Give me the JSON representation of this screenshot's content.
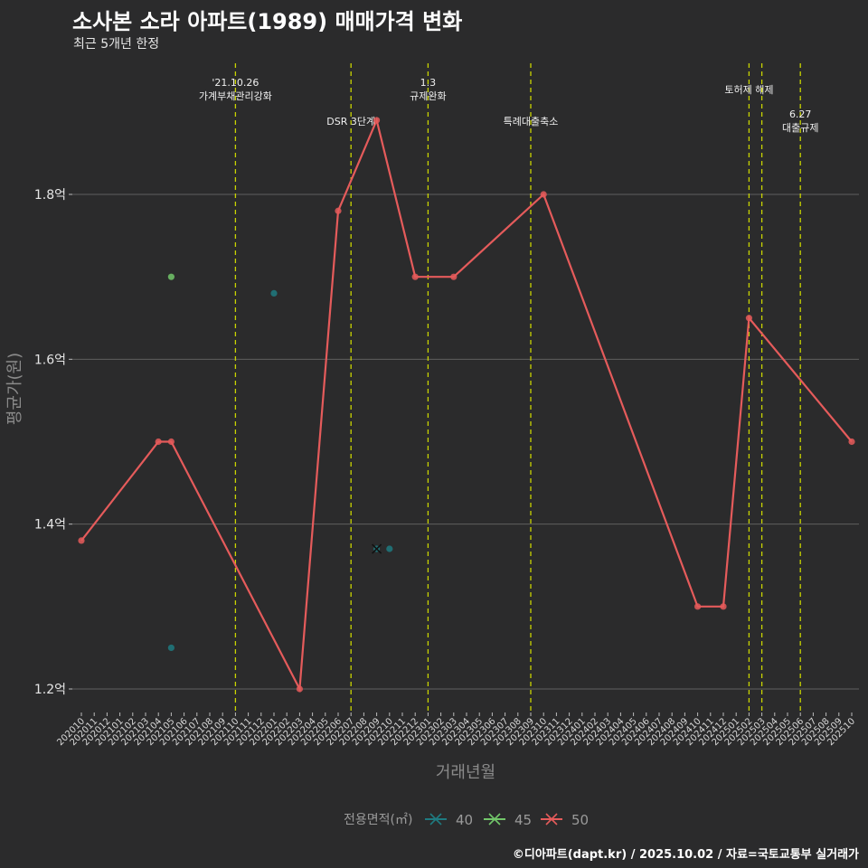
{
  "header": {
    "title": "소사본 소라 아파트(1989) 매매가격 변화",
    "subtitle": "최근 5개년 한정"
  },
  "footer": {
    "credit": "©디아파트(dapt.kr) / 2025.10.02 / 자료=국토교통부 실거래가"
  },
  "colors": {
    "background": "#2b2b2c",
    "grid": "#5f5f5f",
    "event_line": "#c9d400",
    "series_40": "#1f7a80",
    "series_45": "#72c66a",
    "series_50": "#e55b5b"
  },
  "chart_data": {
    "type": "line",
    "xlabel": "거래년월",
    "ylabel": "평균가(원)",
    "ylim": [
      1.17,
      1.96
    ],
    "y_ticks": [
      {
        "value": 1.2,
        "label": "1.2억"
      },
      {
        "value": 1.4,
        "label": "1.4억"
      },
      {
        "value": 1.6,
        "label": "1.6억"
      },
      {
        "value": 1.8,
        "label": "1.8억"
      }
    ],
    "categories": [
      "202010",
      "202011",
      "202012",
      "202101",
      "202102",
      "202103",
      "202104",
      "202105",
      "202106",
      "202107",
      "202108",
      "202109",
      "202110",
      "202111",
      "202112",
      "202201",
      "202202",
      "202203",
      "202204",
      "202205",
      "202206",
      "202207",
      "202208",
      "202209",
      "202210",
      "202211",
      "202212",
      "202301",
      "202302",
      "202303",
      "202304",
      "202305",
      "202306",
      "202307",
      "202308",
      "202309",
      "202310",
      "202311",
      "202312",
      "202401",
      "202402",
      "202403",
      "202404",
      "202405",
      "202406",
      "202407",
      "202408",
      "202409",
      "202410",
      "202411",
      "202412",
      "202501",
      "202502",
      "202503",
      "202504",
      "202505",
      "202506",
      "202507",
      "202508",
      "202509",
      "202510"
    ],
    "legend_title": "전용면적(㎡)",
    "legend_position": "bottom",
    "series": [
      {
        "name": "40",
        "type": "scatter",
        "points": [
          {
            "x": "202201",
            "y": 1.68
          },
          {
            "x": "202105",
            "y": 1.25
          },
          {
            "x": "202209",
            "y": 1.37
          },
          {
            "x": "202210",
            "y": 1.37
          }
        ]
      },
      {
        "name": "45",
        "type": "scatter",
        "points": [
          {
            "x": "202105",
            "y": 1.7
          }
        ]
      },
      {
        "name": "50",
        "type": "line",
        "points": [
          {
            "x": "202010",
            "y": 1.38
          },
          {
            "x": "202104",
            "y": 1.5
          },
          {
            "x": "202105",
            "y": 1.5
          },
          {
            "x": "202203",
            "y": 1.2
          },
          {
            "x": "202206",
            "y": 1.78
          },
          {
            "x": "202209",
            "y": 1.89
          },
          {
            "x": "202212",
            "y": 1.7
          },
          {
            "x": "202303",
            "y": 1.7
          },
          {
            "x": "202310",
            "y": 1.8
          },
          {
            "x": "202410",
            "y": 1.3
          },
          {
            "x": "202412",
            "y": 1.3
          },
          {
            "x": "202502",
            "y": 1.65
          },
          {
            "x": "202510",
            "y": 1.5
          }
        ]
      }
    ],
    "events": [
      {
        "x": "202110",
        "lines": [
          "'21.10.26",
          "가계부채관리강화"
        ],
        "row": 1
      },
      {
        "x": "202207",
        "lines": [
          "DSR 3단계"
        ],
        "row": 3
      },
      {
        "x": "202301",
        "lines": [
          "1.3",
          "규제완화"
        ],
        "row": 1
      },
      {
        "x": "202309",
        "lines": [
          "특례대출축소"
        ],
        "row": 3
      },
      {
        "x": "202502",
        "lines": [
          "토허제 해제"
        ],
        "row": 2
      },
      {
        "x": "202503",
        "lines": [],
        "row": 2
      },
      {
        "x": "202506",
        "lines": [
          "6.27",
          "대출규제"
        ],
        "row": 4
      }
    ]
  }
}
